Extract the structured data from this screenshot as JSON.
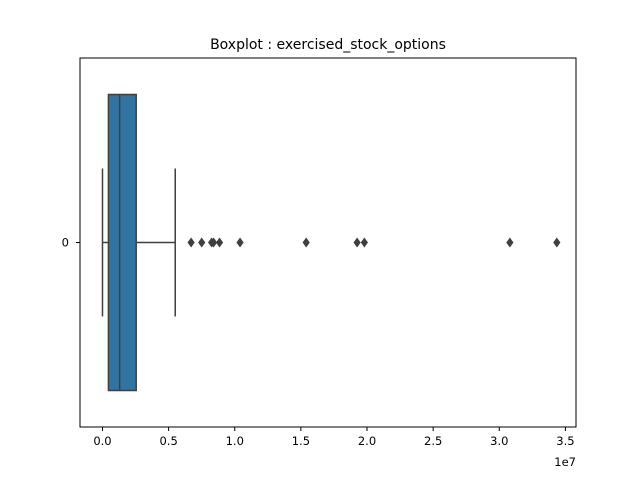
{
  "chart_data": {
    "type": "boxplot",
    "title": "Boxplot : exercised_stock_options",
    "orientation": "horizontal",
    "xlim": [
      -1700000,
      35800000
    ],
    "x_ticks": [
      0,
      5000000,
      10000000,
      15000000,
      20000000,
      25000000,
      30000000,
      35000000
    ],
    "x_tick_labels": [
      "0.0",
      "0.5",
      "1.0",
      "1.5",
      "2.0",
      "2.5",
      "3.0",
      "3.5"
    ],
    "x_offset_label": "1e7",
    "y_tick_labels": [
      "0"
    ],
    "box": {
      "label": "0",
      "whisker_low": 0,
      "q1": 450000,
      "median": 1300000,
      "q3": 2550000,
      "whisker_high": 5500000,
      "outliers": [
        6700000,
        7500000,
        8250000,
        8400000,
        8850000,
        10400000,
        15400000,
        19250000,
        19800000,
        30800000,
        34350000
      ]
    },
    "grid": false,
    "colors": {
      "box_fill": "#3274a1",
      "lines": "#3f3f3f",
      "outlier": "#3f3f3f",
      "axes": "#000000"
    }
  }
}
